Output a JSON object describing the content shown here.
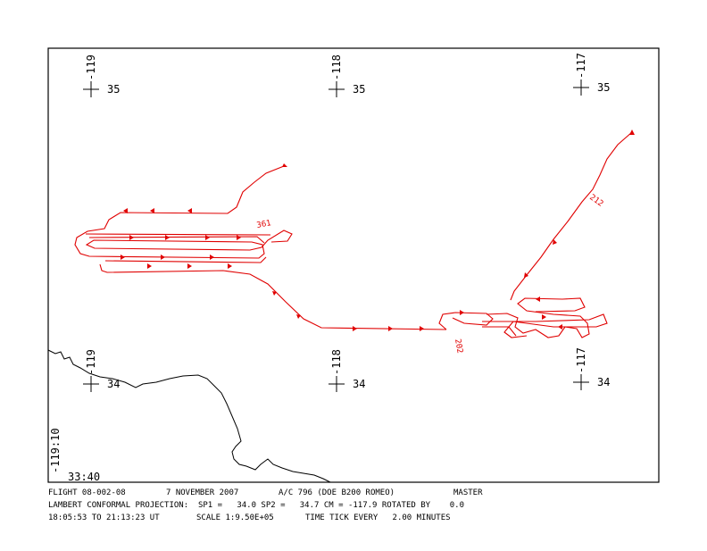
{
  "grid_marks": [
    {
      "lon": "-119",
      "lat": "35"
    },
    {
      "lon": "-118",
      "lat": "35"
    },
    {
      "lon": "-117",
      "lat": "35"
    },
    {
      "lon": "-119",
      "lat": "34"
    },
    {
      "lon": "-118",
      "lat": "34"
    },
    {
      "lon": "-117",
      "lat": "34"
    }
  ],
  "track_labels": [
    "361",
    "202",
    "212"
  ],
  "corner": {
    "lon": "-119:10",
    "lat": "33:40"
  },
  "footer": {
    "line1": [
      "FLIGHT 08-002-08",
      "7 NOVEMBER 2007",
      "A/C 796 (DOE B200 ROMEO)",
      "MASTER"
    ],
    "line2": [
      "LAMBERT CONFORMAL PROJECTION:  SP1 =   34.0 SP2 =   34.7 CM = -117.9 ROTATED BY    0.0"
    ],
    "line3": [
      "18:05:53 TO 21:13:23 UT",
      "SCALE 1:9.50E+05",
      "TIME TICK EVERY   2.00 MINUTES"
    ]
  }
}
